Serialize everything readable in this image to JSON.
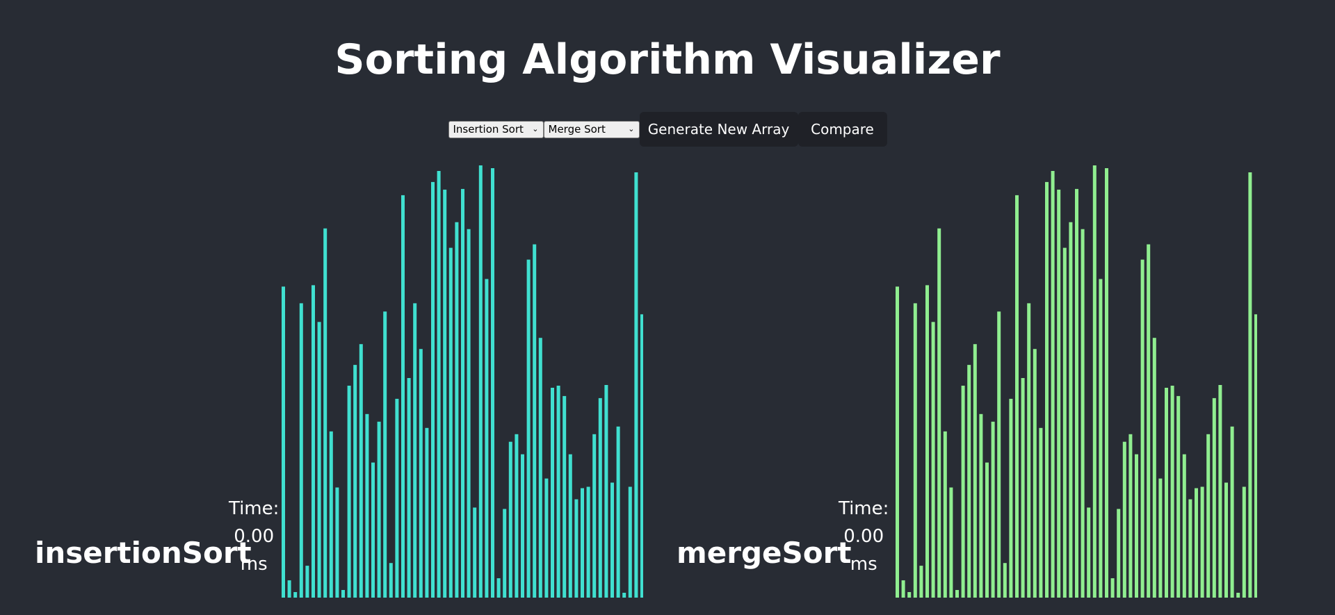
{
  "app": {
    "title": "Sorting Algorithm Visualizer"
  },
  "controls": {
    "algorithm_1": {
      "selected": "Insertion Sort"
    },
    "algorithm_2": {
      "selected": "Merge Sort"
    },
    "generate_label": "Generate New Array",
    "compare_label": "Compare"
  },
  "panels": [
    {
      "name": "insertionSort",
      "time_label": "Time:",
      "time_value": "0.00",
      "time_unit": "ms",
      "bar_color": "#40e0d0"
    },
    {
      "name": "mergeSort",
      "time_label": "Time:",
      "time_value": "0.00",
      "time_unit": "ms",
      "bar_color": "#90ee90"
    }
  ],
  "array_values": [
    449,
    25,
    8,
    425,
    46,
    451,
    398,
    533,
    240,
    159,
    11,
    306,
    336,
    366,
    265,
    195,
    254,
    413,
    50,
    287,
    581,
    317,
    425,
    359,
    245,
    600,
    616,
    589,
    505,
    542,
    590,
    532,
    130,
    624,
    460,
    620,
    28,
    128,
    225,
    236,
    207,
    488,
    510,
    375,
    172,
    303,
    306,
    291,
    207,
    142,
    158,
    160,
    236,
    288,
    307,
    166,
    247,
    7,
    160,
    614,
    409
  ]
}
